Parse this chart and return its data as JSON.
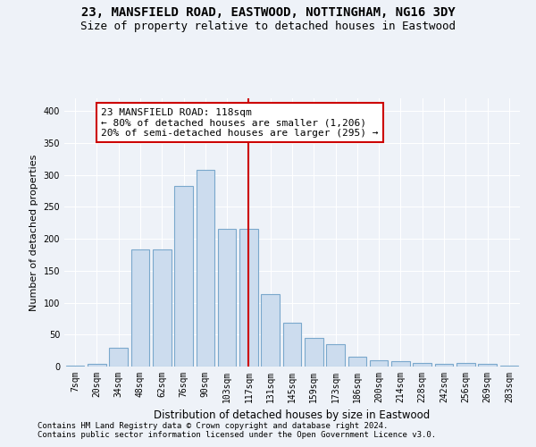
{
  "title1": "23, MANSFIELD ROAD, EASTWOOD, NOTTINGHAM, NG16 3DY",
  "title2": "Size of property relative to detached houses in Eastwood",
  "xlabel": "Distribution of detached houses by size in Eastwood",
  "ylabel": "Number of detached properties",
  "categories": [
    "7sqm",
    "20sqm",
    "34sqm",
    "48sqm",
    "62sqm",
    "76sqm",
    "90sqm",
    "103sqm",
    "117sqm",
    "131sqm",
    "145sqm",
    "159sqm",
    "173sqm",
    "186sqm",
    "200sqm",
    "214sqm",
    "228sqm",
    "242sqm",
    "256sqm",
    "269sqm",
    "283sqm"
  ],
  "values": [
    2,
    4,
    30,
    183,
    183,
    283,
    308,
    215,
    215,
    113,
    68,
    45,
    35,
    15,
    10,
    8,
    6,
    4,
    6,
    4,
    2
  ],
  "bar_color": "#ccdcee",
  "bar_edge_color": "#7aa8cc",
  "vline_x": 8,
  "vline_color": "#cc0000",
  "annotation_box_text": "23 MANSFIELD ROAD: 118sqm\n← 80% of detached houses are smaller (1,206)\n20% of semi-detached houses are larger (295) →",
  "annotation_box_color": "#cc0000",
  "ylim": [
    0,
    420
  ],
  "yticks": [
    0,
    50,
    100,
    150,
    200,
    250,
    300,
    350,
    400
  ],
  "footer1": "Contains HM Land Registry data © Crown copyright and database right 2024.",
  "footer2": "Contains public sector information licensed under the Open Government Licence v3.0.",
  "bg_color": "#eef2f8",
  "grid_color": "#ffffff",
  "title1_fontsize": 10,
  "title2_fontsize": 9,
  "xlabel_fontsize": 8.5,
  "ylabel_fontsize": 8,
  "tick_fontsize": 7,
  "annotation_fontsize": 8,
  "footer_fontsize": 6.5
}
